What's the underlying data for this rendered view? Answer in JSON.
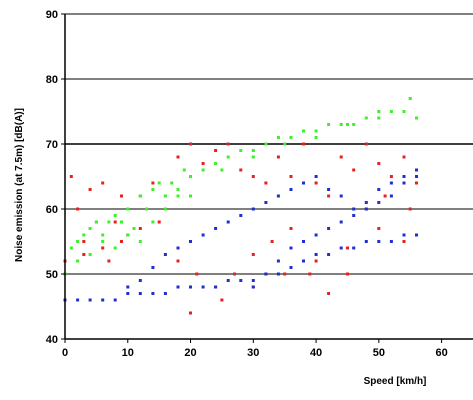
{
  "chart_data": {
    "type": "scatter",
    "title": "",
    "xlabel": "Speed [km/h]",
    "ylabel": "Noise emission (at 7.5m) [dB(A)]",
    "xlim": [
      0,
      65
    ],
    "ylim": [
      40,
      90
    ],
    "x_ticks": [
      0,
      10,
      20,
      30,
      40,
      50,
      60
    ],
    "y_ticks": [
      40,
      50,
      60,
      70,
      80,
      90
    ],
    "grid": "horizontal",
    "legend": "none",
    "colors": {
      "red": "#e8201f",
      "green": "#3ef02a",
      "blue": "#1f2fd0",
      "grid": "#000000",
      "background": "#ffffff"
    },
    "series": [
      {
        "color": "red",
        "x": [
          0,
          1,
          2,
          3,
          4,
          5,
          6,
          7,
          8,
          9,
          10,
          12,
          14,
          16,
          18,
          20,
          22,
          24,
          26,
          28,
          30,
          32,
          34,
          36,
          38,
          40,
          42,
          44,
          46,
          48,
          50,
          52,
          54,
          56,
          3,
          6,
          9,
          12,
          15,
          18,
          21,
          24,
          27,
          30,
          33,
          36,
          39,
          42,
          45,
          48,
          51,
          54,
          20,
          25,
          30,
          35,
          40,
          45,
          50,
          55
        ],
        "y": [
          52,
          65,
          60,
          55,
          63,
          58,
          64,
          52,
          58,
          62,
          56,
          62,
          64,
          60,
          68,
          70,
          67,
          69,
          70,
          66,
          65,
          64,
          68,
          65,
          70,
          64,
          62,
          68,
          66,
          70,
          67,
          65,
          68,
          64,
          53,
          54,
          55,
          57,
          58,
          52,
          50,
          48,
          50,
          53,
          55,
          57,
          50,
          47,
          50,
          60,
          62,
          55,
          44,
          46,
          48,
          50,
          52,
          54,
          57,
          60
        ]
      },
      {
        "color": "green",
        "x": [
          0,
          1,
          2,
          3,
          4,
          5,
          6,
          7,
          8,
          9,
          10,
          11,
          12,
          13,
          14,
          15,
          16,
          17,
          18,
          19,
          20,
          22,
          24,
          26,
          28,
          30,
          32,
          34,
          36,
          38,
          40,
          42,
          44,
          46,
          48,
          50,
          52,
          54,
          56,
          2,
          4,
          6,
          8,
          10,
          12,
          14,
          16,
          18,
          20,
          25,
          30,
          35,
          40,
          45,
          50,
          55
        ],
        "y": [
          50,
          54,
          55,
          56,
          57,
          58,
          56,
          58,
          59,
          58,
          60,
          57,
          62,
          60,
          63,
          64,
          62,
          64,
          63,
          66,
          65,
          66,
          67,
          68,
          69,
          69,
          70,
          71,
          71,
          72,
          72,
          73,
          73,
          73,
          74,
          74,
          75,
          75,
          74,
          52,
          53,
          55,
          54,
          56,
          55,
          58,
          60,
          62,
          62,
          66,
          68,
          70,
          71,
          73,
          75,
          77
        ]
      },
      {
        "color": "blue",
        "x": [
          0,
          2,
          4,
          6,
          8,
          10,
          12,
          14,
          16,
          18,
          20,
          22,
          24,
          26,
          28,
          30,
          32,
          34,
          36,
          38,
          40,
          42,
          44,
          46,
          48,
          50,
          52,
          54,
          56,
          10,
          12,
          14,
          16,
          18,
          20,
          22,
          24,
          26,
          28,
          30,
          32,
          34,
          36,
          38,
          40,
          42,
          44,
          46,
          48,
          50,
          52,
          54,
          56,
          30,
          32,
          34,
          36,
          38,
          40,
          42,
          44,
          46,
          48,
          50,
          52,
          54,
          56
        ],
        "y": [
          46,
          46,
          46,
          46,
          46,
          47,
          47,
          47,
          47,
          48,
          48,
          48,
          48,
          49,
          49,
          49,
          50,
          50,
          51,
          52,
          53,
          53,
          54,
          54,
          55,
          55,
          55,
          56,
          56,
          48,
          49,
          51,
          53,
          54,
          55,
          56,
          57,
          58,
          59,
          60,
          61,
          62,
          63,
          64,
          65,
          63,
          62,
          60,
          61,
          63,
          64,
          65,
          66,
          48,
          50,
          52,
          54,
          55,
          56,
          57,
          58,
          59,
          60,
          61,
          62,
          64,
          65
        ]
      }
    ]
  }
}
